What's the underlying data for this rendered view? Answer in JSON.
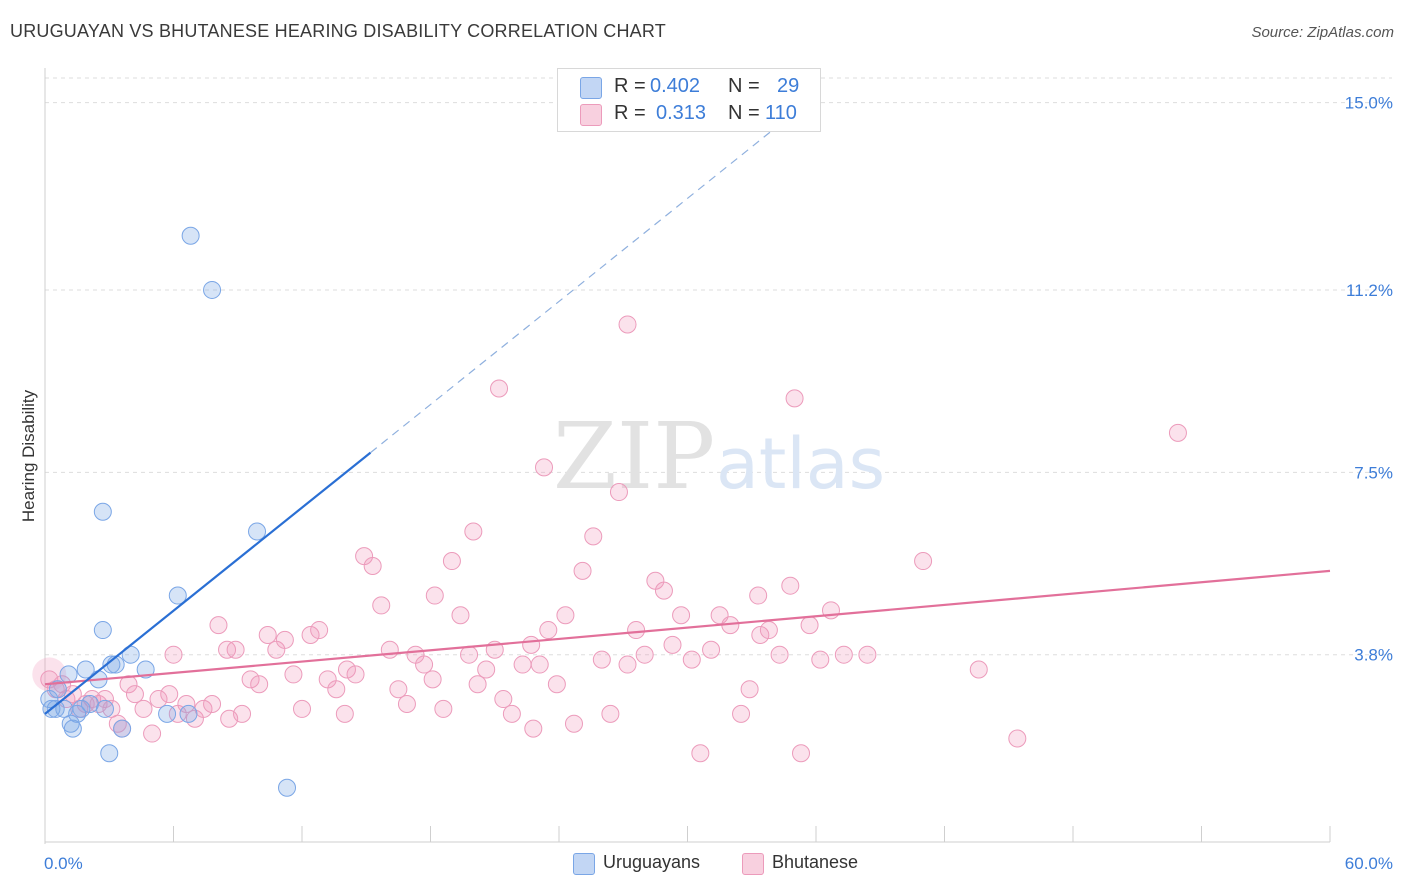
{
  "title": "URUGUAYAN VS BHUTANESE HEARING DISABILITY CORRELATION CHART",
  "source": "Source: ZipAtlas.com",
  "watermark": {
    "zip": "ZIP",
    "atlas": "atlas"
  },
  "colors": {
    "blue_fill": "rgba(120,165,230,0.30)",
    "blue_stroke": "#7aa6e6",
    "blue_line": "#2a6fd4",
    "pink_fill": "rgba(240,150,185,0.28)",
    "pink_stroke": "#ec9bbb",
    "pink_line": "#e2709a",
    "tick_label": "#3d7dd8",
    "grid": "#dddddd"
  },
  "legend": {
    "row1": {
      "r_label": "R =",
      "r_value": "0.402",
      "n_label": "N =",
      "n_value": "29"
    },
    "row2": {
      "r_label": "R =",
      "r_value": "0.313",
      "n_label": "N =",
      "n_value": "110"
    }
  },
  "bottom_legend": {
    "series1": "Uruguayans",
    "series2": "Bhutanese"
  },
  "chart_data": {
    "type": "scatter",
    "title": "URUGUAYAN VS BHUTANESE HEARING DISABILITY CORRELATION CHART",
    "xlabel": "",
    "ylabel": "Hearing Disability",
    "xlim": [
      0,
      60
    ],
    "ylim": [
      0,
      15.5
    ],
    "x_tick_labels": {
      "left": "0.0%",
      "right": "60.0%"
    },
    "y_ticks": [
      3.8,
      7.5,
      11.2,
      15.0
    ],
    "y_tick_labels": [
      "3.8%",
      "7.5%",
      "11.2%",
      "15.0%"
    ],
    "series": [
      {
        "name": "Uruguayans",
        "R": 0.402,
        "N": 29,
        "trend": {
          "x0": 0,
          "y0": 2.6,
          "x1": 15.2,
          "y1": 7.9,
          "dash_x1": 35,
          "dash_y1": 14.8
        },
        "points": [
          [
            0.2,
            2.9
          ],
          [
            0.3,
            2.7
          ],
          [
            0.5,
            2.7
          ],
          [
            0.6,
            3.1
          ],
          [
            0.9,
            2.7
          ],
          [
            1.1,
            3.4
          ],
          [
            1.2,
            2.4
          ],
          [
            1.3,
            2.3
          ],
          [
            1.5,
            2.6
          ],
          [
            1.7,
            2.7
          ],
          [
            1.9,
            3.5
          ],
          [
            2.1,
            2.8
          ],
          [
            2.5,
            3.3
          ],
          [
            2.7,
            4.3
          ],
          [
            2.8,
            2.7
          ],
          [
            3.1,
            3.6
          ],
          [
            3.3,
            3.6
          ],
          [
            3.6,
            2.3
          ],
          [
            4.0,
            3.8
          ],
          [
            4.7,
            3.5
          ],
          [
            5.7,
            2.6
          ],
          [
            6.2,
            5.0
          ],
          [
            6.7,
            2.6
          ],
          [
            6.8,
            12.3
          ],
          [
            2.7,
            6.7
          ],
          [
            7.8,
            11.2
          ],
          [
            9.9,
            6.3
          ],
          [
            11.3,
            1.1
          ],
          [
            3.0,
            1.8
          ]
        ]
      },
      {
        "name": "Bhutanese",
        "R": 0.313,
        "N": 110,
        "trend": {
          "x0": 0,
          "y0": 3.2,
          "x1": 60,
          "y1": 5.5
        },
        "points": [
          [
            0.2,
            3.3
          ],
          [
            0.5,
            3.1
          ],
          [
            0.8,
            3.2
          ],
          [
            1.0,
            2.9
          ],
          [
            1.3,
            3.0
          ],
          [
            1.6,
            2.7
          ],
          [
            1.9,
            2.8
          ],
          [
            2.2,
            2.9
          ],
          [
            2.5,
            2.8
          ],
          [
            2.8,
            2.9
          ],
          [
            3.1,
            2.7
          ],
          [
            3.4,
            2.4
          ],
          [
            3.6,
            2.3
          ],
          [
            3.9,
            3.2
          ],
          [
            4.2,
            3.0
          ],
          [
            4.6,
            2.7
          ],
          [
            5.0,
            2.2
          ],
          [
            5.3,
            2.9
          ],
          [
            5.8,
            3.0
          ],
          [
            6.2,
            2.6
          ],
          [
            6.6,
            2.8
          ],
          [
            7.0,
            2.5
          ],
          [
            7.4,
            2.7
          ],
          [
            7.8,
            2.8
          ],
          [
            8.1,
            4.4
          ],
          [
            8.5,
            3.9
          ],
          [
            8.9,
            3.9
          ],
          [
            9.2,
            2.6
          ],
          [
            9.6,
            3.3
          ],
          [
            10.0,
            3.2
          ],
          [
            10.4,
            4.2
          ],
          [
            10.8,
            3.9
          ],
          [
            11.2,
            4.1
          ],
          [
            11.6,
            3.4
          ],
          [
            12.0,
            2.7
          ],
          [
            12.4,
            4.2
          ],
          [
            12.8,
            4.3
          ],
          [
            13.2,
            3.3
          ],
          [
            13.6,
            3.1
          ],
          [
            14.1,
            3.5
          ],
          [
            14.5,
            3.4
          ],
          [
            14.9,
            5.8
          ],
          [
            15.3,
            5.6
          ],
          [
            15.7,
            4.8
          ],
          [
            16.1,
            3.9
          ],
          [
            16.5,
            3.1
          ],
          [
            16.9,
            2.8
          ],
          [
            17.3,
            3.8
          ],
          [
            17.7,
            3.6
          ],
          [
            18.1,
            3.3
          ],
          [
            18.6,
            2.7
          ],
          [
            19.0,
            5.7
          ],
          [
            19.4,
            4.6
          ],
          [
            19.8,
            3.8
          ],
          [
            20.2,
            3.2
          ],
          [
            20.6,
            3.5
          ],
          [
            21.0,
            3.9
          ],
          [
            21.4,
            2.9
          ],
          [
            21.8,
            2.6
          ],
          [
            22.3,
            3.6
          ],
          [
            22.7,
            4.0
          ],
          [
            23.1,
            3.6
          ],
          [
            23.5,
            4.3
          ],
          [
            23.9,
            3.2
          ],
          [
            24.3,
            4.6
          ],
          [
            24.7,
            2.4
          ],
          [
            25.1,
            5.5
          ],
          [
            25.6,
            6.2
          ],
          [
            26.0,
            3.7
          ],
          [
            26.4,
            2.6
          ],
          [
            26.8,
            7.1
          ],
          [
            27.2,
            3.6
          ],
          [
            27.6,
            4.3
          ],
          [
            28.0,
            3.8
          ],
          [
            28.5,
            5.3
          ],
          [
            28.9,
            5.1
          ],
          [
            29.3,
            4.0
          ],
          [
            29.7,
            4.6
          ],
          [
            30.2,
            3.7
          ],
          [
            30.6,
            1.8
          ],
          [
            31.1,
            3.9
          ],
          [
            31.5,
            4.6
          ],
          [
            32.0,
            4.4
          ],
          [
            32.5,
            2.6
          ],
          [
            32.9,
            3.1
          ],
          [
            33.4,
            4.2
          ],
          [
            33.8,
            4.3
          ],
          [
            34.3,
            3.8
          ],
          [
            34.8,
            5.2
          ],
          [
            35.3,
            1.8
          ],
          [
            35.7,
            4.4
          ],
          [
            36.2,
            3.7
          ],
          [
            36.7,
            4.7
          ],
          [
            37.3,
            3.8
          ],
          [
            38.4,
            3.8
          ],
          [
            41.0,
            5.7
          ],
          [
            43.6,
            3.5
          ],
          [
            45.4,
            2.1
          ],
          [
            52.9,
            8.3
          ],
          [
            23.3,
            7.6
          ],
          [
            21.2,
            9.2
          ],
          [
            35.0,
            9.0
          ],
          [
            27.2,
            10.5
          ],
          [
            8.6,
            2.5
          ],
          [
            6.0,
            3.8
          ],
          [
            14.0,
            2.6
          ],
          [
            18.2,
            5.0
          ],
          [
            20.0,
            6.3
          ],
          [
            22.8,
            2.3
          ],
          [
            33.3,
            5.0
          ]
        ]
      }
    ]
  }
}
